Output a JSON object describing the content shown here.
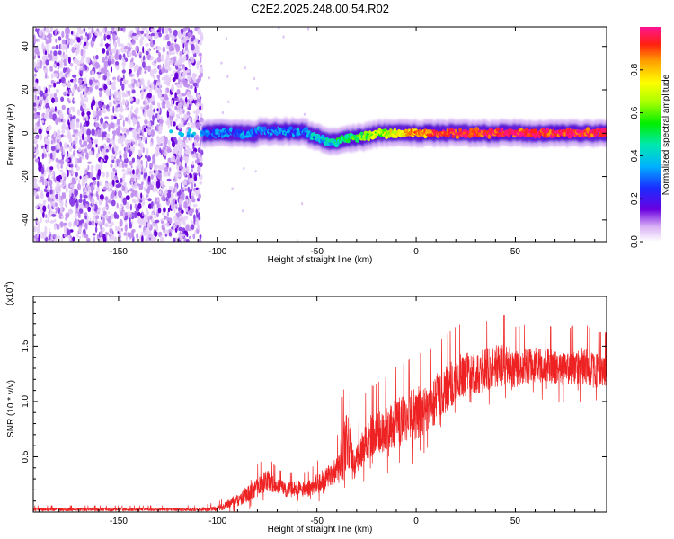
{
  "title": "C2E2.2025.248.00.54.R02",
  "chart_data": [
    {
      "type": "heatmap",
      "title": "C2E2.2025.248.00.54.R02",
      "xlabel": "Height of straight line (km)",
      "ylabel": "Frequency (Hz)",
      "xlim": [
        -193,
        96
      ],
      "ylim": [
        -50,
        49
      ],
      "xticks": [
        -150,
        -100,
        -50,
        0,
        50
      ],
      "yticks": [
        -40,
        -20,
        0,
        20,
        40
      ],
      "xtick_labels": [
        "-150",
        "-100",
        "-50",
        "0",
        "50"
      ],
      "ytick_labels": [
        "-40",
        "-20",
        "0",
        "20",
        "40"
      ],
      "colorbar": {
        "label": "Normalized spectral amplitude",
        "range": [
          0,
          1
        ],
        "ticks": [
          0.0,
          0.2,
          0.4,
          0.6,
          0.8
        ],
        "tick_labels": [
          "0.0",
          "0.2",
          "0.4",
          "0.6",
          "0.8"
        ]
      },
      "regions": [
        {
          "name": "noise",
          "x_range": [
            -193,
            -108
          ],
          "y_range": [
            -50,
            49
          ],
          "amplitude": 0.15
        },
        {
          "name": "signal-band",
          "x_range": [
            -108,
            96
          ],
          "center_freq_hz": 0,
          "half_width_hz": 4,
          "amplitude_start": 0.3,
          "amplitude_end": 0.95
        }
      ]
    },
    {
      "type": "line",
      "xlabel": "Height of straight line (km)",
      "ylabel": "SNR (10 * v/v)",
      "multiplier_label": "(x10",
      "multiplier_exponent": "4",
      "multiplier_close": ")",
      "xlim": [
        -193,
        96
      ],
      "ylim": [
        0,
        19500
      ],
      "xticks": [
        -150,
        -100,
        -50,
        0,
        50
      ],
      "yticks": [
        5000,
        10000,
        15000
      ],
      "xtick_labels": [
        "-150",
        "-100",
        "-50",
        "0",
        "50"
      ],
      "ytick_labels": [
        "0.5",
        "1.0",
        "1.5"
      ],
      "color": "#ee2222",
      "series": [
        {
          "name": "SNR",
          "x": [
            -193,
            -110,
            -100,
            -95,
            -90,
            -85,
            -80,
            -75,
            -70,
            -65,
            -60,
            -55,
            -50,
            -45,
            -40,
            -37,
            -35,
            -33,
            -31,
            -28,
            -25,
            -20,
            -15,
            -10,
            -5,
            0,
            5,
            10,
            15,
            20,
            25,
            30,
            35,
            40,
            45,
            50,
            55,
            60,
            65,
            70,
            75,
            80,
            85,
            90,
            96
          ],
          "y": [
            250,
            250,
            350,
            700,
            1100,
            1700,
            2300,
            2900,
            2400,
            2000,
            2200,
            2000,
            2600,
            3200,
            3800,
            5000,
            6800,
            6000,
            4200,
            5500,
            6800,
            7200,
            7500,
            8200,
            8500,
            9000,
            9200,
            10300,
            11200,
            12000,
            12500,
            12600,
            12900,
            13300,
            13400,
            13000,
            13200,
            13300,
            13400,
            13200,
            12900,
            13200,
            13300,
            12800,
            12700
          ],
          "amp": [
            150,
            150,
            250,
            400,
            600,
            800,
            900,
            1000,
            700,
            650,
            750,
            700,
            900,
            1000,
            1200,
            2600,
            2800,
            2000,
            1300,
            1600,
            2000,
            2000,
            2200,
            2300,
            2300,
            2500,
            2300,
            2300,
            2200,
            2200,
            2100,
            1900,
            2000,
            2000,
            2000,
            1700,
            1700,
            1700,
            1600,
            1600,
            1600,
            1700,
            1700,
            1600,
            1600
          ]
        }
      ]
    }
  ]
}
